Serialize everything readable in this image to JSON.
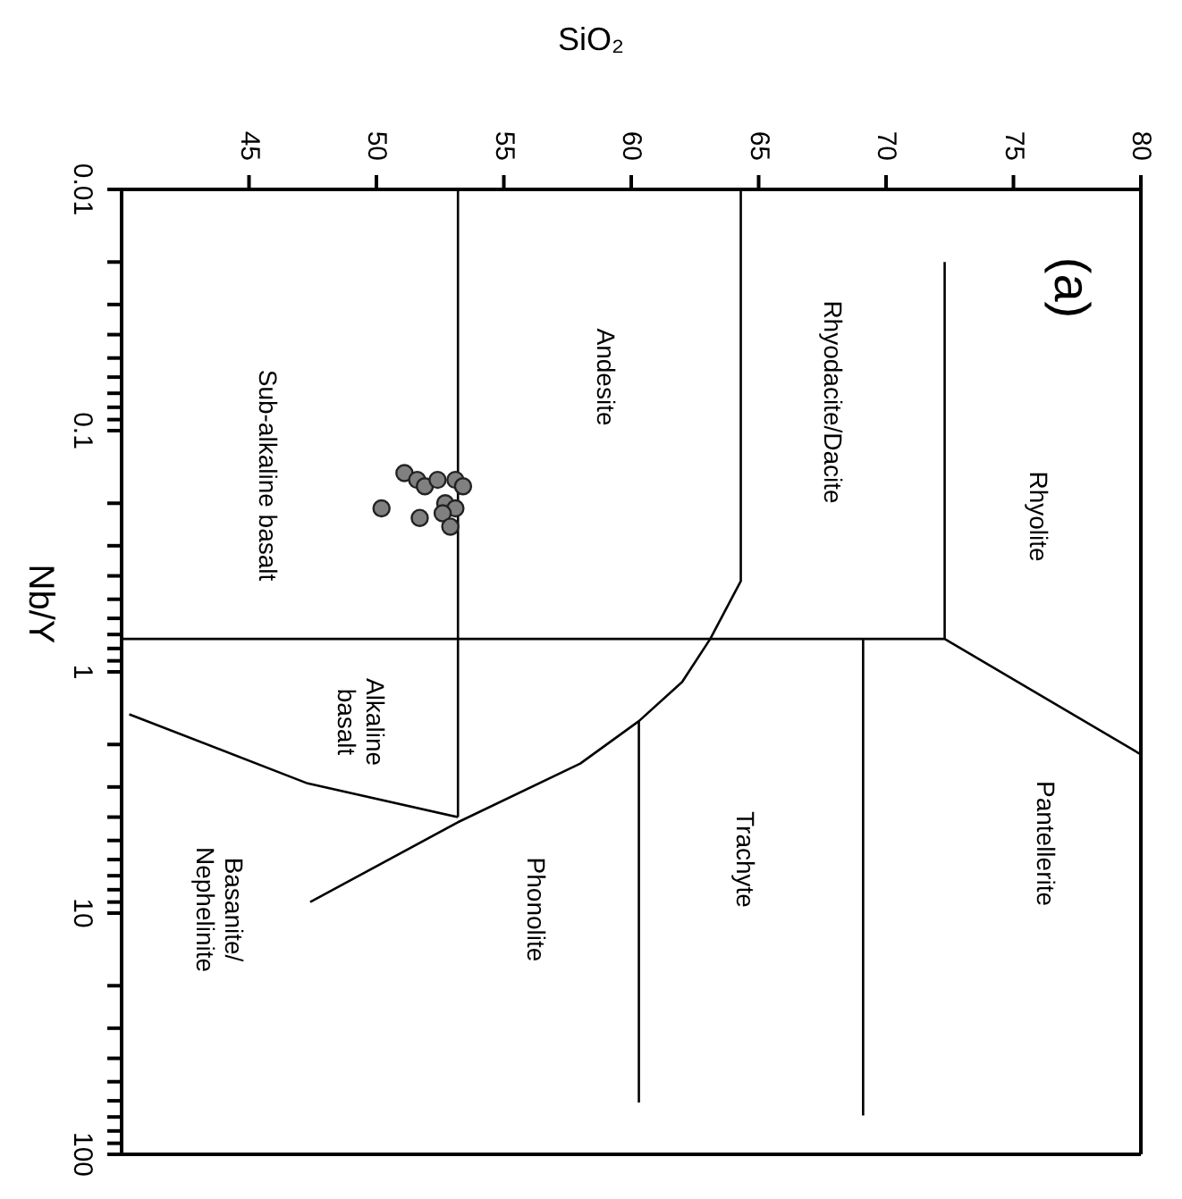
{
  "chart_data": {
    "type": "scatter",
    "xlabel": "SiO₂",
    "ylabel": "Nb/Y",
    "xlim": [
      40,
      80
    ],
    "xticks": [
      45,
      50,
      55,
      60,
      65,
      70,
      75,
      80
    ],
    "ylim": [
      100,
      0.01
    ],
    "log": "y",
    "grid": false,
    "marker": "circle",
    "yticks": [
      {
        "value": 0.01,
        "label": "0.01"
      },
      {
        "value": 0.02,
        "label": null
      },
      {
        "value": 0.03,
        "label": null
      },
      {
        "value": 0.04,
        "label": null
      },
      {
        "value": 0.05,
        "label": null
      },
      {
        "value": 0.06,
        "label": null
      },
      {
        "value": 0.07,
        "label": null
      },
      {
        "value": 0.08,
        "label": null
      },
      {
        "value": 0.09,
        "label": null
      },
      {
        "value": 0.1,
        "label": "0.1"
      },
      {
        "value": 0.2,
        "label": null
      },
      {
        "value": 0.3,
        "label": null
      },
      {
        "value": 0.4,
        "label": null
      },
      {
        "value": 0.5,
        "label": null
      },
      {
        "value": 0.6,
        "label": null
      },
      {
        "value": 0.7,
        "label": null
      },
      {
        "value": 0.8,
        "label": null
      },
      {
        "value": 0.9,
        "label": null
      },
      1,
      {
        "value": 2,
        "label": null
      },
      {
        "value": 3,
        "label": null
      },
      {
        "value": 4,
        "label": null
      },
      {
        "value": 5,
        "label": null
      },
      {
        "value": 6,
        "label": null
      },
      {
        "value": 7,
        "label": null
      },
      {
        "value": 8,
        "label": null
      },
      {
        "value": 9,
        "label": null
      },
      10,
      {
        "value": 20,
        "label": null
      },
      {
        "value": 30,
        "label": null
      },
      {
        "value": 40,
        "label": null
      },
      {
        "value": 50,
        "label": null
      },
      {
        "value": 60,
        "label": null
      },
      {
        "value": 70,
        "label": null
      },
      {
        "value": 80,
        "label": null
      },
      {
        "value": 90,
        "label": null
      },
      100
    ],
    "series": [
      {
        "color": "#808080",
        "x": [
          51.1,
          51.6,
          51.9,
          52.4,
          53.1,
          53.4,
          50.2,
          51.7,
          52.7,
          53.1,
          52.6,
          52.9
        ],
        "values": [
          0.15,
          0.16,
          0.17,
          0.16,
          0.16,
          0.17,
          0.21,
          0.23,
          0.2,
          0.21,
          0.22,
          0.25
        ]
      },
      {
        "type": "line",
        "marker": "none",
        "color": "#000000",
        "x": [
          53.2,
          53.2
        ],
        "values": [
          0.01,
          4.0
        ]
      },
      {
        "type": "line",
        "marker": "none",
        "color": "#000000",
        "x": [
          40,
          72.3,
          80
        ],
        "values": [
          0.73,
          0.73,
          2.2
        ]
      },
      {
        "type": "line",
        "marker": "none",
        "color": "#000000",
        "x": [
          72.3,
          72.3
        ],
        "values": [
          0.02,
          0.73
        ]
      },
      {
        "type": "line",
        "marker": "none",
        "color": "#000000",
        "x": [
          40.3,
          47.3,
          53.2
        ],
        "values": [
          1.5,
          2.9,
          4.0
        ]
      },
      {
        "type": "line",
        "marker": "none",
        "color": "#000000",
        "x": [
          64.3,
          64.3,
          63.1,
          62.0,
          60.3,
          58.0,
          53.2,
          47.4
        ],
        "values": [
          0.01,
          0.42,
          0.73,
          1.1,
          1.6,
          2.4,
          4.2,
          9.0
        ]
      },
      {
        "type": "line",
        "marker": "none",
        "color": "#000000",
        "x": [
          60.3,
          60.3
        ],
        "values": [
          1.6,
          61
        ]
      },
      {
        "type": "line",
        "marker": "none",
        "color": "#000000",
        "x": [
          69.1,
          69.1
        ],
        "values": [
          0.73,
          69
        ]
      }
    ],
    "annotations": [
      "Rhyolite",
      "Rhyodacite/Dacite",
      "Andesite",
      "Sub-alkaline basalt",
      "Alkaline\nbasalt",
      "Basanite/\nNephelinite",
      "Phonolite",
      "Trachyte",
      "Pantellerite",
      "(a)"
    ]
  }
}
